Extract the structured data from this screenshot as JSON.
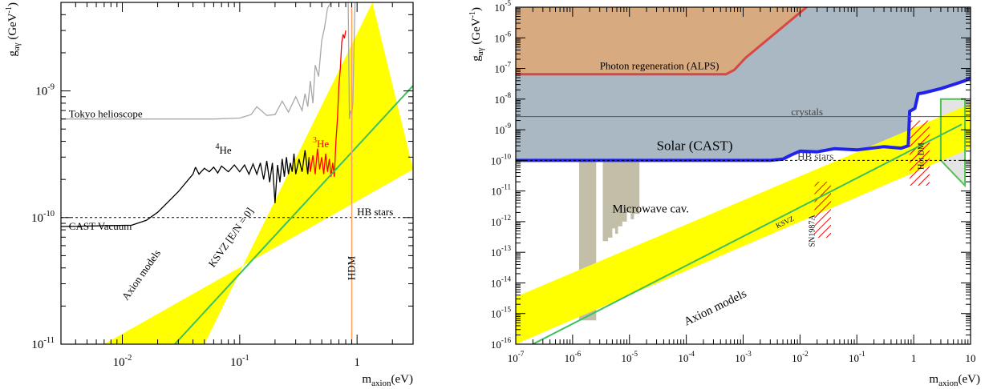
{
  "chart_data": [
    {
      "type": "line",
      "xscale": "log",
      "yscale": "log",
      "xlim": [
        0.003,
        3
      ],
      "ylim": [
        1e-11,
        5e-09
      ],
      "x_ticks": [
        {
          "value": 0.01,
          "base": "10",
          "exp": "-2"
        },
        {
          "value": 0.1,
          "base": "10",
          "exp": "-1"
        },
        {
          "value": 1,
          "base": "1",
          "exp": ""
        }
      ],
      "y_ticks": [
        {
          "value": 1e-11,
          "base": "10",
          "exp": "-11"
        },
        {
          "value": 1e-10,
          "base": "10",
          "exp": "-10"
        },
        {
          "value": 1e-09,
          "base": "10",
          "exp": "-9"
        }
      ],
      "xlabel": {
        "main": "m",
        "sub": "axion",
        "unit": "(eV)"
      },
      "ylabel": {
        "main": "g",
        "sub": "aγ",
        "unit": "(GeV",
        "unit_exp": "-1",
        "close": ")"
      },
      "band": {
        "lower": [
          [
            0.007,
            1e-11
          ],
          [
            3,
            2.4e-10
          ]
        ],
        "upper": [
          [
            0.05,
            1e-11
          ],
          [
            1.35,
            5e-09
          ]
        ],
        "color": "#ffff00"
      },
      "series": [
        {
          "key": "tokyo",
          "color": "#a8a8a8",
          "points": [
            [
              0.003,
              6e-10
            ],
            [
              0.06,
              6e-10
            ],
            [
              0.1,
              6.1e-10
            ],
            [
              0.125,
              6.5e-10
            ],
            [
              0.14,
              7.5e-10
            ],
            [
              0.17,
              6.4e-10
            ],
            [
              0.2,
              6.5e-10
            ],
            [
              0.23,
              8.3e-10
            ],
            [
              0.26,
              6.8e-10
            ],
            [
              0.3,
              9e-10
            ],
            [
              0.34,
              7e-10
            ],
            [
              0.36,
              9.5e-10
            ],
            [
              0.38,
              7.5e-10
            ],
            [
              0.4,
              1.2e-09
            ],
            [
              0.42,
              8e-10
            ],
            [
              0.44,
              1.6e-09
            ],
            [
              0.47,
              1.3e-09
            ],
            [
              0.5,
              2.5e-09
            ],
            [
              0.53,
              3.2e-09
            ],
            [
              0.56,
              4.5e-09
            ],
            [
              0.6,
              5e-09
            ]
          ]
        },
        {
          "key": "tokyo-dip",
          "color": "#a8a8a8",
          "points": [
            [
              0.84,
              5e-09
            ],
            [
              0.86,
              6e-10
            ],
            [
              0.88,
              7e-10
            ],
            [
              0.9,
              6.5e-10
            ],
            [
              0.92,
              8e-10
            ],
            [
              0.94,
              2e-09
            ],
            [
              0.96,
              5e-09
            ]
          ]
        },
        {
          "key": "cast-vacuum",
          "color": "#000000",
          "points": [
            [
              0.003,
              8.5e-11
            ],
            [
              0.012,
              8.7e-11
            ],
            [
              0.016,
              9.5e-11
            ],
            [
              0.02,
              1.1e-10
            ],
            [
              0.025,
              1.35e-10
            ],
            [
              0.03,
              1.6e-10
            ],
            [
              0.035,
              1.9e-10
            ],
            [
              0.04,
              2.2e-10
            ],
            [
              0.042,
              2.5e-10
            ]
          ]
        },
        {
          "key": "he4",
          "color": "#000000",
          "points": [
            [
              0.042,
              2.5e-10
            ],
            [
              0.045,
              2.2e-10
            ],
            [
              0.05,
              2.45e-10
            ],
            [
              0.055,
              2.3e-10
            ],
            [
              0.06,
              2.5e-10
            ],
            [
              0.065,
              2.25e-10
            ],
            [
              0.07,
              2.55e-10
            ],
            [
              0.08,
              2.3e-10
            ],
            [
              0.09,
              2.6e-10
            ],
            [
              0.1,
              2.3e-10
            ],
            [
              0.11,
              2.6e-10
            ],
            [
              0.12,
              2.2e-10
            ],
            [
              0.13,
              2.65e-10
            ],
            [
              0.14,
              2.2e-10
            ],
            [
              0.15,
              2.7e-10
            ],
            [
              0.16,
              2e-10
            ],
            [
              0.17,
              2.8e-10
            ],
            [
              0.18,
              1.9e-10
            ],
            [
              0.19,
              2.7e-10
            ],
            [
              0.2,
              1.3e-10
            ],
            [
              0.21,
              2.6e-10
            ],
            [
              0.22,
              1.9e-10
            ],
            [
              0.23,
              2.9e-10
            ],
            [
              0.24,
              2.1e-10
            ],
            [
              0.25,
              3e-10
            ],
            [
              0.26,
              2.2e-10
            ],
            [
              0.27,
              2.7e-10
            ],
            [
              0.28,
              2.3e-10
            ],
            [
              0.29,
              3.2e-10
            ],
            [
              0.3,
              2.2e-10
            ],
            [
              0.32,
              2.9e-10
            ],
            [
              0.34,
              2.3e-10
            ],
            [
              0.36,
              3.4e-10
            ],
            [
              0.38,
              2.2e-10
            ],
            [
              0.39,
              3e-10
            ]
          ]
        },
        {
          "key": "he3",
          "color": "#ff0000",
          "points": [
            [
              0.39,
              3e-10
            ],
            [
              0.4,
              2.3e-10
            ],
            [
              0.42,
              3.1e-10
            ],
            [
              0.44,
              2.2e-10
            ],
            [
              0.46,
              3.5e-10
            ],
            [
              0.48,
              2.4e-10
            ],
            [
              0.5,
              3e-10
            ],
            [
              0.52,
              2.2e-10
            ],
            [
              0.54,
              3.2e-10
            ],
            [
              0.56,
              2.3e-10
            ],
            [
              0.58,
              2.9e-10
            ],
            [
              0.6,
              2.1e-10
            ],
            [
              0.62,
              2.7e-10
            ],
            [
              0.64,
              2.1e-10
            ],
            [
              0.66,
              4e-10
            ],
            [
              0.68,
              6e-10
            ],
            [
              0.7,
              1.1e-09
            ],
            [
              0.72,
              1.5e-09
            ],
            [
              0.74,
              2.4e-09
            ],
            [
              0.76,
              2.8e-09
            ],
            [
              0.78,
              2.6e-09
            ],
            [
              0.8,
              3e-09
            ]
          ]
        },
        {
          "key": "ksvz",
          "color": "#3cc060",
          "points": [
            [
              0.028,
              1e-11
            ],
            [
              3,
              1.1e-09
            ]
          ]
        },
        {
          "key": "hdm",
          "color": "#ff9d5c",
          "points": [
            [
              0.9,
              1e-11
            ],
            [
              0.9,
              5e-09
            ]
          ]
        }
      ],
      "hlines": [
        {
          "key": "hb-stars",
          "y": 1e-10,
          "dashed": true
        }
      ],
      "annotations": [
        {
          "key": "tokyo",
          "text": "Tokyo helioscope",
          "x": 0.0035,
          "y": 6.2e-10
        },
        {
          "key": "he4",
          "text": "He",
          "sup": "4",
          "x": 0.062,
          "y": 3.2e-10
        },
        {
          "key": "he3",
          "text": "He",
          "sup": "3",
          "x": 0.42,
          "y": 3.6e-10,
          "color": "#ff0000"
        },
        {
          "key": "cast-vac",
          "text": "CAST Vacuum",
          "x": 0.0035,
          "y": 8e-11
        },
        {
          "key": "hb-stars",
          "text": "HB stars",
          "x": 1.0,
          "y": 1.04e-10
        },
        {
          "key": "axion-models",
          "text": "Axion models",
          "x": 0.011,
          "y": 2.2e-11,
          "rotate": -55
        },
        {
          "key": "ksvz",
          "text": "KSVZ [E/N = 0]",
          "x": 0.06,
          "y": 4e-11,
          "rotate": -55
        },
        {
          "key": "hdm",
          "text": "HDM",
          "x": 0.96,
          "y": 3.2e-11,
          "rotate": -90
        }
      ]
    },
    {
      "type": "area",
      "xscale": "log",
      "yscale": "log",
      "xlim": [
        1e-07,
        10
      ],
      "ylim": [
        1e-16,
        1e-05
      ],
      "x_ticks": [
        {
          "value": 1e-07,
          "base": "10",
          "exp": "-7"
        },
        {
          "value": 1e-06,
          "base": "10",
          "exp": "-6"
        },
        {
          "value": 1e-05,
          "base": "10",
          "exp": "-5"
        },
        {
          "value": 0.0001,
          "base": "10",
          "exp": "-4"
        },
        {
          "value": 0.001,
          "base": "10",
          "exp": "-3"
        },
        {
          "value": 0.01,
          "base": "10",
          "exp": "-2"
        },
        {
          "value": 0.1,
          "base": "10",
          "exp": "-1"
        },
        {
          "value": 1,
          "base": "1",
          "exp": ""
        },
        {
          "value": 10,
          "base": "10",
          "exp": ""
        }
      ],
      "y_ticks": [
        {
          "value": 1e-16,
          "base": "10",
          "exp": "-16"
        },
        {
          "value": 1e-15,
          "base": "10",
          "exp": "-15"
        },
        {
          "value": 1e-14,
          "base": "10",
          "exp": "-14"
        },
        {
          "value": 1e-13,
          "base": "10",
          "exp": "-13"
        },
        {
          "value": 1e-12,
          "base": "10",
          "exp": "-12"
        },
        {
          "value": 1e-11,
          "base": "10",
          "exp": "-11"
        },
        {
          "value": 1e-10,
          "base": "10",
          "exp": "-10"
        },
        {
          "value": 1e-09,
          "base": "10",
          "exp": "-9"
        },
        {
          "value": 1e-08,
          "base": "10",
          "exp": "-8"
        },
        {
          "value": 1e-07,
          "base": "10",
          "exp": "-7"
        },
        {
          "value": 1e-06,
          "base": "10",
          "exp": "-6"
        },
        {
          "value": 1e-05,
          "base": "10",
          "exp": "-5"
        }
      ],
      "xlabel": {
        "main": "m",
        "sub": "axion",
        "unit": "(eV)"
      },
      "ylabel": {
        "main": "g",
        "sub": "aγ",
        "unit": "(GeV",
        "unit_exp": "-1",
        "close": ")"
      },
      "regions": [
        {
          "key": "solar-cast",
          "fill": "#a9b8c3",
          "stroke": "#2222ee",
          "stroke_width": 4,
          "points": [
            [
              1e-07,
              1e-05
            ],
            [
              10,
              1e-05
            ],
            [
              10,
              5e-08
            ],
            [
              8,
              4e-08
            ],
            [
              5,
              3e-08
            ],
            [
              3,
              2.2e-08
            ],
            [
              1.5,
              1.6e-08
            ],
            [
              1.2,
              1.5e-08
            ],
            [
              1.05,
              5e-09
            ],
            [
              0.95,
              4.5e-09
            ],
            [
              0.85,
              4e-09
            ],
            [
              0.8,
              3e-10
            ],
            [
              0.6,
              2.5e-10
            ],
            [
              0.3,
              2.8e-10
            ],
            [
              0.1,
              2.2e-10
            ],
            [
              0.04,
              2.4e-10
            ],
            [
              0.02,
              1.9e-10
            ],
            [
              0.01,
              2e-10
            ],
            [
              0.007,
              1.5e-10
            ],
            [
              0.005,
              1.1e-10
            ],
            [
              0.003,
              1e-10
            ],
            [
              1e-07,
              1e-10
            ]
          ]
        },
        {
          "key": "alps",
          "fill": "#d8aa80",
          "stroke": "#d94646",
          "stroke_width": 3,
          "points": [
            [
              1e-07,
              1e-05
            ],
            [
              0.013,
              1e-05
            ],
            [
              0.0011,
              2.2e-07
            ],
            [
              0.0007,
              9e-08
            ],
            [
              0.0005,
              6.5e-08
            ],
            [
              1e-07,
              6.5e-08
            ]
          ]
        },
        {
          "key": "hot-dm",
          "fill": "#e4e4e4",
          "stroke": "#4fc24f",
          "stroke_width": 2,
          "points": [
            [
              3,
              1e-10
            ],
            [
              3,
              1e-08
            ],
            [
              8,
              1e-08
            ],
            [
              8,
              1.5e-11
            ]
          ]
        }
      ],
      "microwave_cavity": [
        {
          "x": [
            1.3e-06,
            2.6e-06
          ],
          "y_top": 1e-10,
          "y_bottom": 6e-16
        },
        {
          "x": [
            3.4e-06,
            1.5e-05
          ],
          "y_top": 1e-10,
          "y_bottom": 2.3e-13,
          "steps": [
            [
              3.4e-06,
              2.3e-13
            ],
            [
              4.2e-06,
              3e-13
            ],
            [
              5e-06,
              6e-13
            ],
            [
              5.6e-06,
              4e-13
            ],
            [
              6.3e-06,
              7e-13
            ],
            [
              7.5e-06,
              1e-12
            ],
            [
              9e-06,
              2e-12
            ],
            [
              1.05e-05,
              1.2e-12
            ],
            [
              1.2e-05,
              1.8e-12
            ],
            [
              1.5e-05,
              1.8e-12
            ]
          ]
        }
      ],
      "band": {
        "lower": [
          [
            1e-07,
            1e-16
          ],
          [
            10,
            2.5e-10
          ]
        ],
        "upper": [
          [
            1e-07,
            3.5e-15
          ],
          [
            10,
            7e-09
          ]
        ],
        "color": "#ffff00"
      },
      "series": [
        {
          "key": "ksvz",
          "color": "#3cc060",
          "points": [
            [
              2e-07,
              1e-16
            ],
            [
              7,
              1.5e-09
            ]
          ]
        }
      ],
      "hlines": [
        {
          "key": "crystals",
          "y": 2.7e-09,
          "dashed": false,
          "color": "#555555"
        },
        {
          "key": "hb-stars",
          "y": 1e-10,
          "dashed": true,
          "color": "#000000"
        }
      ],
      "hatched": [
        {
          "key": "sn1987a",
          "x": [
            0.018,
            0.035
          ],
          "y": [
            3e-13,
            2e-11
          ]
        },
        {
          "key": "hot-dm",
          "x": [
            0.85,
            1.9
          ],
          "y": [
            1.5e-11,
            2e-09
          ]
        }
      ],
      "annotations": [
        {
          "key": "alps",
          "text": "Photon regeneration (ALPS)",
          "x": 3e-06,
          "y": 9.5e-08
        },
        {
          "key": "crystals",
          "text": "crystals",
          "x": 0.007,
          "y": 3e-09,
          "color": "#444444"
        },
        {
          "key": "solar-cast",
          "text": "Solar (CAST)",
          "x": 3e-05,
          "y": 2.2e-10,
          "size": 17
        },
        {
          "key": "hb-stars",
          "text": "HB stars",
          "x": 0.009,
          "y": 1.05e-10,
          "color": "#444444"
        },
        {
          "key": "microwave",
          "text": "Microwave cav.",
          "x": 5e-06,
          "y": 2e-12,
          "size": 15
        },
        {
          "key": "ksvz",
          "text": "KSVZ",
          "x": 0.004,
          "y": 6e-13,
          "rotate": -26,
          "size": 9
        },
        {
          "key": "axion-models",
          "text": "Axion models",
          "x": 0.0001,
          "y": 4e-16,
          "rotate": -26,
          "size": 15
        },
        {
          "key": "sn1987a",
          "text": "SN1987A",
          "x": 0.018,
          "y": 1.5e-13,
          "rotate": -90,
          "size": 10
        },
        {
          "key": "hot-dm-label",
          "text": "Hot DM",
          "x": 1.5,
          "y": 5e-11,
          "rotate": -90,
          "size": 10
        }
      ]
    }
  ]
}
